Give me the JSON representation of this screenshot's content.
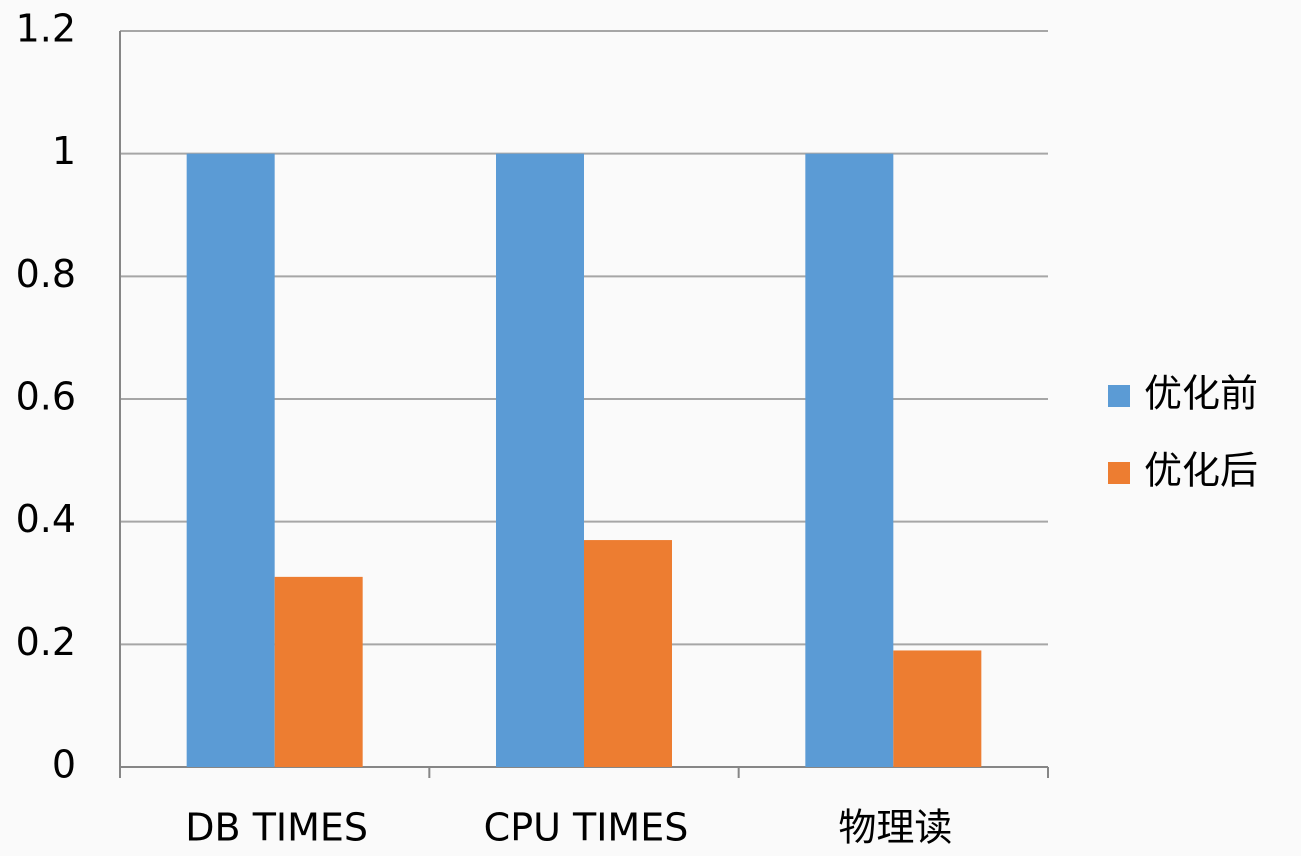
{
  "chart_data": {
    "type": "bar",
    "categories": [
      "DB TIMES",
      "CPU TIMES",
      "物理读"
    ],
    "series": [
      {
        "name": "优化前",
        "color": "#5b9bd5",
        "values": [
          1,
          1,
          1
        ]
      },
      {
        "name": "优化后",
        "color": "#ed7d31",
        "values": [
          0.31,
          0.37,
          0.19
        ]
      }
    ],
    "ylim": [
      0,
      1.2
    ],
    "yticks": [
      0,
      0.2,
      0.4,
      0.6,
      0.8,
      1,
      1.2
    ],
    "grid": true,
    "legend": "right"
  }
}
